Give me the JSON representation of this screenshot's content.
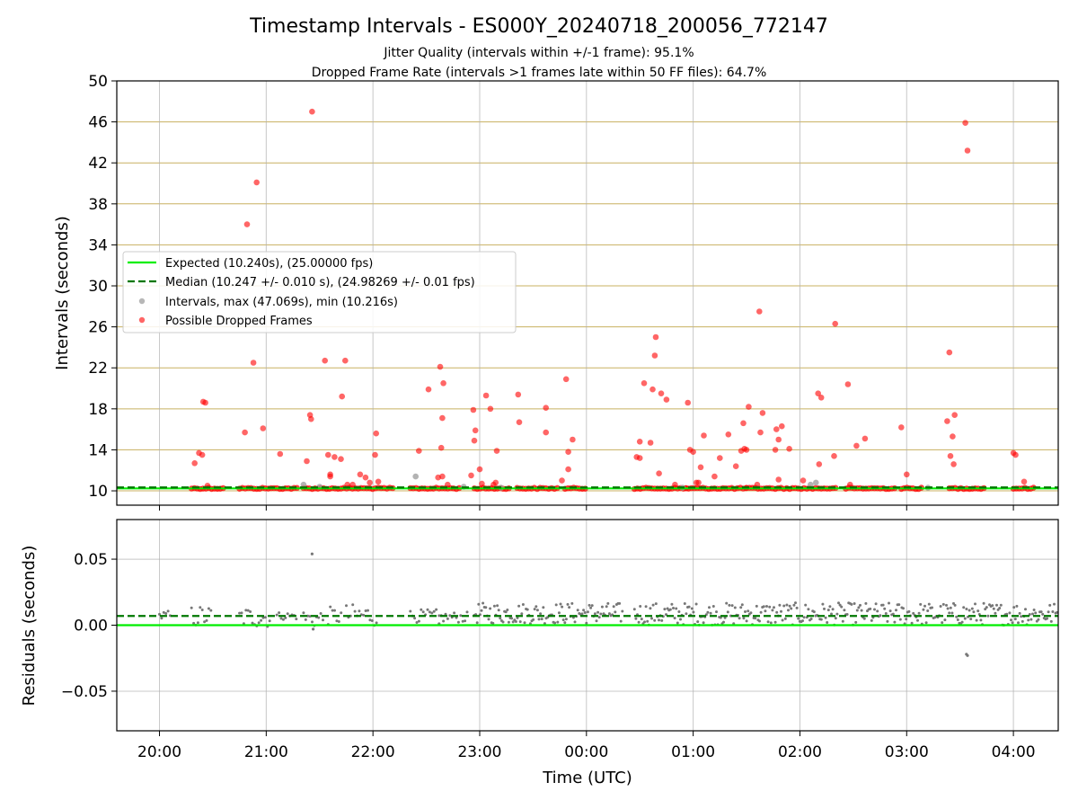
{
  "figure": {
    "title": "Timestamp Intervals - ES000Y_20240718_200056_772147",
    "subtitle_1": "Jitter Quality (intervals within +/-1 frame): 95.1%",
    "subtitle_2": "Dropped Frame Rate (intervals >1 frames late within 50 FF files): 64.7%"
  },
  "chart_data": [
    {
      "type": "scatter",
      "ylabel": "Intervals (seconds)",
      "ylim": [
        8.6,
        50
      ],
      "yticks": [
        10,
        14,
        18,
        22,
        26,
        30,
        34,
        38,
        42,
        46,
        50
      ],
      "xlim_hours": [
        19.6,
        28.42
      ],
      "grid": true,
      "colors": {
        "expected": "#00ee00",
        "median": "#007700",
        "intervals": "#999999",
        "dropped": "#ff0000",
        "hgrid": "#c8b060"
      },
      "legend": {
        "placement": "upper-left",
        "entries": [
          "Expected (10.240s), (25.00000 fps)",
          "Median (10.247 +/- 0.010 s), (24.98269 +/- 0.01 fps)",
          "Intervals, max (47.069s), min (10.216s)",
          "Possible Dropped Frames"
        ]
      },
      "expected": 10.24,
      "median": 10.247,
      "series": [
        {
          "name": "Intervals, max (47.069s), min (10.216s)",
          "points": [
            [
              21.35,
              10.6
            ],
            [
              22.4,
              11.4
            ],
            [
              22.85,
              10.4
            ],
            [
              23.2,
              10.3
            ],
            [
              24.9,
              10.3
            ],
            [
              26.1,
              10.6
            ],
            [
              26.15,
              10.8
            ],
            [
              21.5,
              10.4
            ],
            [
              27.2,
              10.3
            ]
          ]
        },
        {
          "name": "Possible Dropped Frames",
          "bands": [
            [
              20.3,
              20.6
            ],
            [
              20.75,
              21.3
            ],
            [
              21.35,
              22.2
            ],
            [
              22.35,
              22.82
            ],
            [
              22.95,
              23.3
            ],
            [
              23.35,
              23.75
            ],
            [
              23.8,
              24.0
            ],
            [
              24.45,
              24.95
            ],
            [
              24.93,
              25.5
            ],
            [
              25.5,
              26.35
            ],
            [
              26.43,
              26.9
            ],
            [
              26.95,
              27.15
            ],
            [
              27.4,
              27.75
            ],
            [
              28.0,
              28.2
            ]
          ],
          "points": [
            [
              20.33,
              12.7
            ],
            [
              20.37,
              13.7
            ],
            [
              20.4,
              13.5
            ],
            [
              20.41,
              18.7
            ],
            [
              20.43,
              18.6
            ],
            [
              20.45,
              10.5
            ],
            [
              20.8,
              15.7
            ],
            [
              20.82,
              36.0
            ],
            [
              20.88,
              22.5
            ],
            [
              20.91,
              40.1
            ],
            [
              20.97,
              16.1
            ],
            [
              21.13,
              13.6
            ],
            [
              21.38,
              12.9
            ],
            [
              21.41,
              17.4
            ],
            [
              21.43,
              47.0
            ],
            [
              21.42,
              17.0
            ],
            [
              21.55,
              22.7
            ],
            [
              21.58,
              13.5
            ],
            [
              21.6,
              11.6
            ],
            [
              21.6,
              11.4
            ],
            [
              21.64,
              13.3
            ],
            [
              21.7,
              13.1
            ],
            [
              21.71,
              19.2
            ],
            [
              21.74,
              22.7
            ],
            [
              21.76,
              10.6
            ],
            [
              21.81,
              10.6
            ],
            [
              21.88,
              11.6
            ],
            [
              21.93,
              11.3
            ],
            [
              21.97,
              10.8
            ],
            [
              22.02,
              13.5
            ],
            [
              22.03,
              15.6
            ],
            [
              22.05,
              10.9
            ],
            [
              22.43,
              13.9
            ],
            [
              22.52,
              19.9
            ],
            [
              22.61,
              11.3
            ],
            [
              22.63,
              22.1
            ],
            [
              22.64,
              14.2
            ],
            [
              22.65,
              17.1
            ],
            [
              22.66,
              20.5
            ],
            [
              22.65,
              11.4
            ],
            [
              22.7,
              10.6
            ],
            [
              22.92,
              11.5
            ],
            [
              22.94,
              17.9
            ],
            [
              22.95,
              14.9
            ],
            [
              22.96,
              15.9
            ],
            [
              23.0,
              12.1
            ],
            [
              23.02,
              10.7
            ],
            [
              23.06,
              19.3
            ],
            [
              23.1,
              18.0
            ],
            [
              23.13,
              10.6
            ],
            [
              23.15,
              10.8
            ],
            [
              23.16,
              13.9
            ],
            [
              23.36,
              19.4
            ],
            [
              23.37,
              16.7
            ],
            [
              23.62,
              15.7
            ],
            [
              23.62,
              18.1
            ],
            [
              23.77,
              11.0
            ],
            [
              23.81,
              20.9
            ],
            [
              23.83,
              13.8
            ],
            [
              23.83,
              12.1
            ],
            [
              23.87,
              15.0
            ],
            [
              24.47,
              13.3
            ],
            [
              24.5,
              13.2
            ],
            [
              24.5,
              14.8
            ],
            [
              24.54,
              20.5
            ],
            [
              24.6,
              14.7
            ],
            [
              24.62,
              19.9
            ],
            [
              24.64,
              23.2
            ],
            [
              24.65,
              25.0
            ],
            [
              24.68,
              11.7
            ],
            [
              24.7,
              19.5
            ],
            [
              24.75,
              18.9
            ],
            [
              24.83,
              10.6
            ],
            [
              24.95,
              18.6
            ],
            [
              24.97,
              14.0
            ],
            [
              25.0,
              13.8
            ],
            [
              25.03,
              10.8
            ],
            [
              25.05,
              10.8
            ],
            [
              25.07,
              12.3
            ],
            [
              25.1,
              15.4
            ],
            [
              25.2,
              11.4
            ],
            [
              25.25,
              13.2
            ],
            [
              25.33,
              15.5
            ],
            [
              25.4,
              12.4
            ],
            [
              25.45,
              13.9
            ],
            [
              25.47,
              16.6
            ],
            [
              25.48,
              14.1
            ],
            [
              25.5,
              14.0
            ],
            [
              25.52,
              18.2
            ],
            [
              25.6,
              10.6
            ],
            [
              25.62,
              27.5
            ],
            [
              25.63,
              15.7
            ],
            [
              25.65,
              17.6
            ],
            [
              25.77,
              14.0
            ],
            [
              25.78,
              16.0
            ],
            [
              25.8,
              11.1
            ],
            [
              25.8,
              15.0
            ],
            [
              25.83,
              16.3
            ],
            [
              25.9,
              14.1
            ],
            [
              26.03,
              11.0
            ],
            [
              26.17,
              19.5
            ],
            [
              26.18,
              12.6
            ],
            [
              26.2,
              19.1
            ],
            [
              26.32,
              13.4
            ],
            [
              26.33,
              26.3
            ],
            [
              26.45,
              20.4
            ],
            [
              26.47,
              10.6
            ],
            [
              26.53,
              14.4
            ],
            [
              26.61,
              15.1
            ],
            [
              26.95,
              16.2
            ],
            [
              27.0,
              11.6
            ],
            [
              27.38,
              16.8
            ],
            [
              27.4,
              23.5
            ],
            [
              27.41,
              13.4
            ],
            [
              27.43,
              15.3
            ],
            [
              27.45,
              17.4
            ],
            [
              27.44,
              12.6
            ],
            [
              27.55,
              45.9
            ],
            [
              27.57,
              43.2
            ],
            [
              28.0,
              13.7
            ],
            [
              28.02,
              13.5
            ],
            [
              28.1,
              10.9
            ]
          ]
        }
      ]
    },
    {
      "type": "scatter",
      "xlabel": "Time (UTC)",
      "ylabel": "Residuals (seconds)",
      "ylim": [
        -0.08,
        0.08
      ],
      "yticks": [
        0.05,
        0.0,
        -0.05
      ],
      "ytick_labels": [
        "0.05",
        "0.00",
        "−0.05"
      ],
      "xlim_hours": [
        19.6,
        28.42
      ],
      "xticks": [
        "20:00",
        "21:00",
        "22:00",
        "23:00",
        "00:00",
        "01:00",
        "02:00",
        "03:00",
        "04:00"
      ],
      "xtick_hours": [
        20,
        21,
        22,
        23,
        24,
        25,
        26,
        27,
        28
      ],
      "grid": true,
      "zero_line": 0.0,
      "median_residual": 0.007,
      "clusters": [
        {
          "x": [
            20.0,
            20.12
          ],
          "y": [
            0.003,
            0.011
          ]
        },
        {
          "x": [
            20.3,
            20.5
          ],
          "y": [
            -0.002,
            0.015
          ]
        },
        {
          "x": [
            20.75,
            21.05
          ],
          "y": [
            -0.002,
            0.014
          ]
        },
        {
          "x": [
            21.1,
            21.3
          ],
          "y": [
            0.004,
            0.01
          ]
        },
        {
          "x": [
            21.35,
            21.55
          ],
          "y": [
            -0.002,
            0.012
          ]
        },
        {
          "x": [
            21.58,
            21.72
          ],
          "y": [
            0.0,
            0.014
          ]
        },
        {
          "x": [
            21.75,
            22.05
          ],
          "y": [
            -0.001,
            0.016
          ]
        },
        {
          "x": [
            22.35,
            22.6
          ],
          "y": [
            0.002,
            0.012
          ]
        },
        {
          "x": [
            22.62,
            22.9
          ],
          "y": [
            0.002,
            0.01
          ]
        },
        {
          "x": [
            22.95,
            24.35
          ],
          "y": [
            0.001,
            0.017
          ]
        },
        {
          "x": [
            24.45,
            28.42
          ],
          "y": [
            0.0,
            0.017
          ]
        }
      ],
      "outliers": [
        [
          21.43,
          0.054
        ],
        [
          27.56,
          -0.022
        ],
        [
          27.57,
          -0.023
        ],
        [
          21.44,
          -0.003
        ],
        [
          22.62,
          0.001
        ]
      ]
    }
  ]
}
